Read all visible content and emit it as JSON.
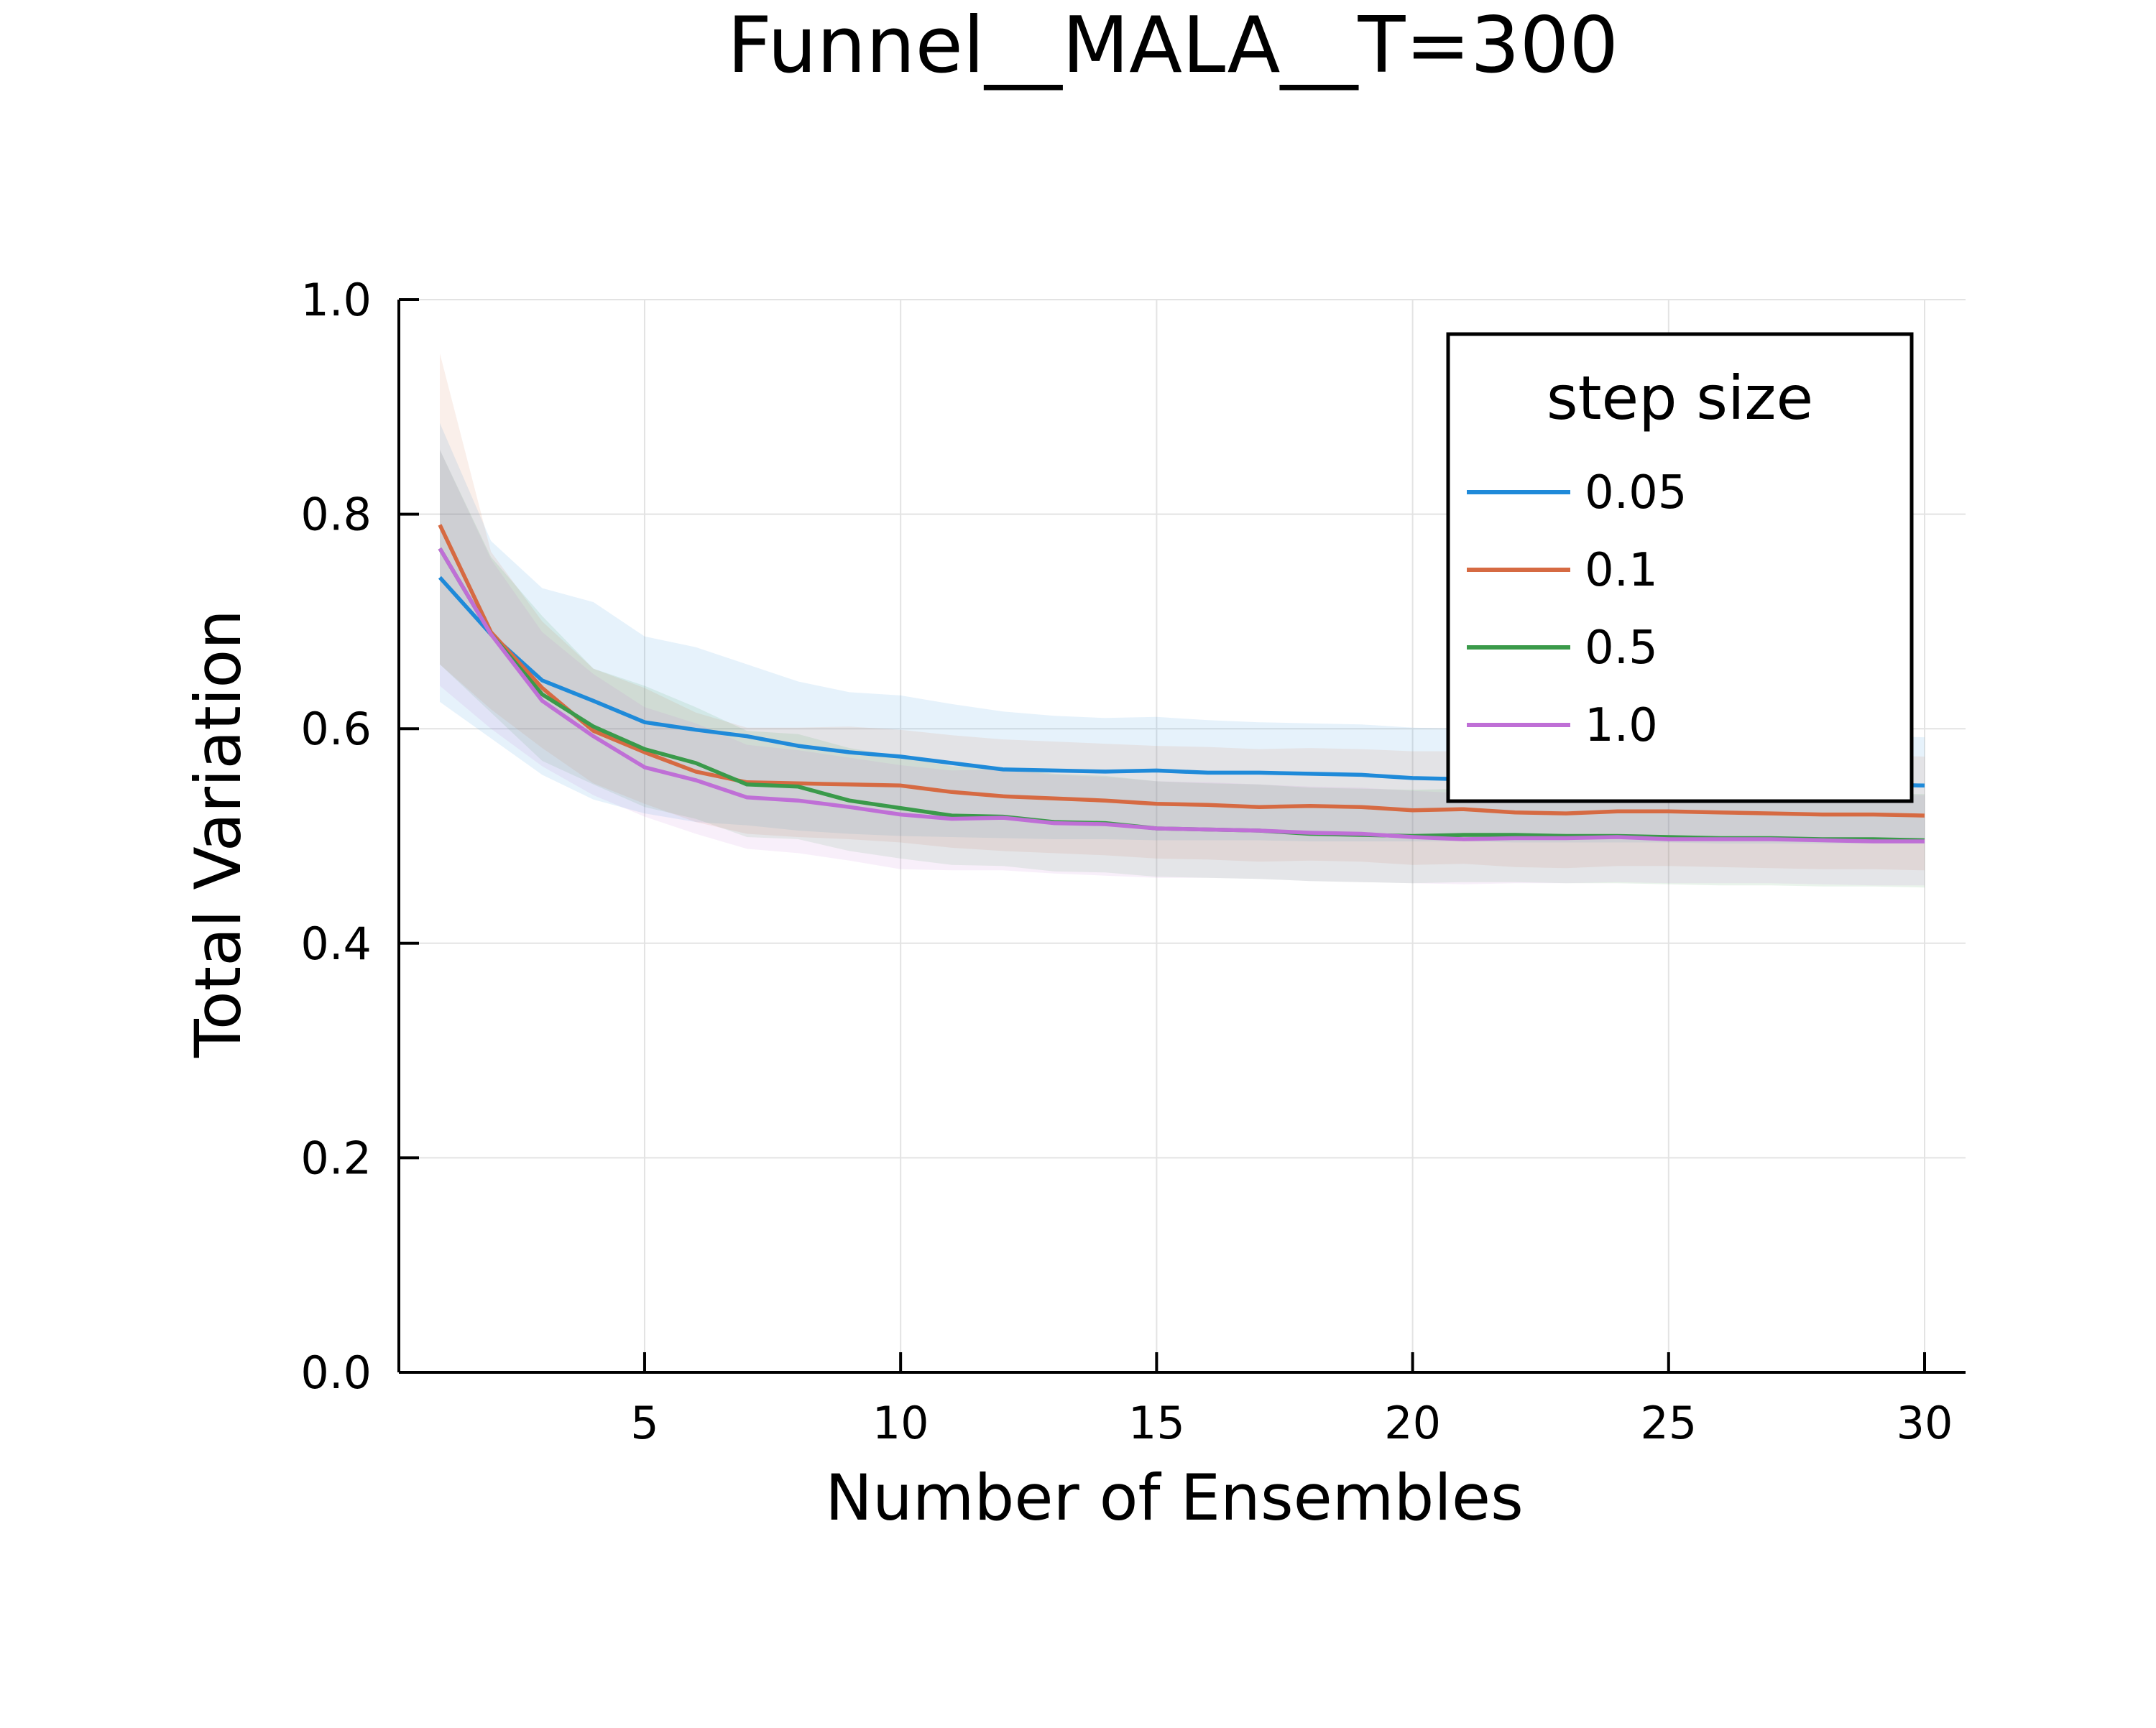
{
  "chart_data": {
    "type": "line",
    "title": "Funnel__MALA__T=300",
    "xlabel": "Number of Ensembles",
    "ylabel": "Total Variation",
    "xlim": [
      0.2,
      30.8
    ],
    "ylim": [
      0.0,
      1.0
    ],
    "xticks": [
      5,
      10,
      15,
      20,
      25,
      30
    ],
    "xtick_labels": [
      "5",
      "10",
      "15",
      "20",
      "25",
      "30"
    ],
    "yticks": [
      0.0,
      0.2,
      0.4,
      0.6,
      0.8,
      1.0
    ],
    "ytick_labels": [
      "0.0",
      "0.2",
      "0.4",
      "0.6",
      "0.8",
      "1.0"
    ],
    "grid": true,
    "legend": {
      "title": "step size",
      "position": "top-right"
    },
    "x": [
      1,
      2,
      3,
      4,
      5,
      6,
      7,
      8,
      9,
      10,
      11,
      12,
      13,
      14,
      15,
      16,
      17,
      18,
      19,
      20,
      21,
      22,
      23,
      24,
      25,
      26,
      27,
      28,
      29,
      30
    ],
    "series": [
      {
        "name": "0.05",
        "color": "#1f8ad9",
        "values": [
          0.741,
          0.688,
          0.645,
          0.626,
          0.606,
          0.599,
          0.593,
          0.584,
          0.578,
          0.574,
          0.568,
          0.562,
          0.561,
          0.56,
          0.561,
          0.559,
          0.559,
          0.558,
          0.557,
          0.554,
          0.553,
          0.552,
          0.551,
          0.55,
          0.55,
          0.549,
          0.549,
          0.549,
          0.548,
          0.547
        ],
        "upper": [
          0.885,
          0.775,
          0.731,
          0.718,
          0.686,
          0.676,
          0.66,
          0.644,
          0.634,
          0.631,
          0.623,
          0.616,
          0.612,
          0.61,
          0.611,
          0.608,
          0.606,
          0.605,
          0.604,
          0.601,
          0.6,
          0.599,
          0.598,
          0.597,
          0.596,
          0.595,
          0.594,
          0.594,
          0.593,
          0.592
        ],
        "lower": [
          0.625,
          0.591,
          0.557,
          0.534,
          0.521,
          0.513,
          0.51,
          0.505,
          0.502,
          0.5,
          0.499,
          0.498,
          0.497,
          0.497,
          0.496,
          0.496,
          0.496,
          0.495,
          0.495,
          0.495,
          0.495,
          0.494,
          0.494,
          0.494,
          0.494,
          0.493,
          0.493,
          0.493,
          0.493,
          0.493
        ]
      },
      {
        "name": "0.1",
        "color": "#d66a42",
        "values": [
          0.79,
          0.69,
          0.638,
          0.598,
          0.578,
          0.56,
          0.55,
          0.549,
          0.548,
          0.547,
          0.541,
          0.537,
          0.535,
          0.533,
          0.53,
          0.529,
          0.527,
          0.528,
          0.527,
          0.524,
          0.525,
          0.522,
          0.521,
          0.523,
          0.523,
          0.522,
          0.521,
          0.52,
          0.52,
          0.519
        ],
        "upper": [
          0.95,
          0.765,
          0.7,
          0.656,
          0.638,
          0.615,
          0.601,
          0.601,
          0.602,
          0.599,
          0.594,
          0.59,
          0.588,
          0.586,
          0.584,
          0.583,
          0.581,
          0.582,
          0.581,
          0.579,
          0.579,
          0.577,
          0.576,
          0.578,
          0.578,
          0.577,
          0.576,
          0.575,
          0.575,
          0.574
        ],
        "lower": [
          0.66,
          0.618,
          0.582,
          0.549,
          0.53,
          0.513,
          0.502,
          0.499,
          0.497,
          0.494,
          0.489,
          0.486,
          0.484,
          0.482,
          0.479,
          0.478,
          0.476,
          0.477,
          0.476,
          0.473,
          0.474,
          0.471,
          0.47,
          0.472,
          0.472,
          0.471,
          0.47,
          0.469,
          0.469,
          0.468
        ]
      },
      {
        "name": "0.5",
        "color": "#3a9a4a",
        "values": [
          0.768,
          0.688,
          0.632,
          0.602,
          0.581,
          0.568,
          0.548,
          0.546,
          0.533,
          0.526,
          0.519,
          0.518,
          0.513,
          0.512,
          0.507,
          0.506,
          0.505,
          0.502,
          0.501,
          0.5,
          0.501,
          0.501,
          0.5,
          0.5,
          0.499,
          0.498,
          0.498,
          0.497,
          0.497,
          0.496
        ],
        "upper": [
          0.86,
          0.76,
          0.705,
          0.656,
          0.64,
          0.62,
          0.598,
          0.595,
          0.582,
          0.574,
          0.565,
          0.563,
          0.558,
          0.556,
          0.551,
          0.549,
          0.548,
          0.545,
          0.544,
          0.543,
          0.544,
          0.544,
          0.543,
          0.543,
          0.542,
          0.541,
          0.541,
          0.54,
          0.54,
          0.539
        ],
        "lower": [
          0.66,
          0.615,
          0.57,
          0.548,
          0.527,
          0.516,
          0.499,
          0.497,
          0.486,
          0.479,
          0.473,
          0.472,
          0.467,
          0.466,
          0.462,
          0.461,
          0.46,
          0.458,
          0.457,
          0.456,
          0.457,
          0.457,
          0.456,
          0.456,
          0.455,
          0.454,
          0.454,
          0.453,
          0.453,
          0.452
        ]
      },
      {
        "name": "1.0",
        "color": "#bf6fd6",
        "values": [
          0.768,
          0.688,
          0.626,
          0.593,
          0.564,
          0.552,
          0.536,
          0.533,
          0.527,
          0.52,
          0.516,
          0.517,
          0.512,
          0.511,
          0.507,
          0.506,
          0.505,
          0.503,
          0.502,
          0.499,
          0.497,
          0.498,
          0.498,
          0.499,
          0.497,
          0.497,
          0.497,
          0.496,
          0.495,
          0.495
        ],
        "upper": [
          0.86,
          0.758,
          0.69,
          0.651,
          0.62,
          0.605,
          0.585,
          0.58,
          0.573,
          0.566,
          0.561,
          0.562,
          0.557,
          0.555,
          0.551,
          0.55,
          0.548,
          0.546,
          0.545,
          0.542,
          0.54,
          0.541,
          0.541,
          0.542,
          0.54,
          0.54,
          0.54,
          0.539,
          0.538,
          0.538
        ],
        "lower": [
          0.64,
          0.6,
          0.565,
          0.538,
          0.518,
          0.502,
          0.488,
          0.484,
          0.477,
          0.469,
          0.468,
          0.468,
          0.465,
          0.463,
          0.461,
          0.461,
          0.46,
          0.458,
          0.457,
          0.456,
          0.455,
          0.456,
          0.456,
          0.457,
          0.456,
          0.456,
          0.456,
          0.455,
          0.454,
          0.454
        ]
      }
    ]
  }
}
